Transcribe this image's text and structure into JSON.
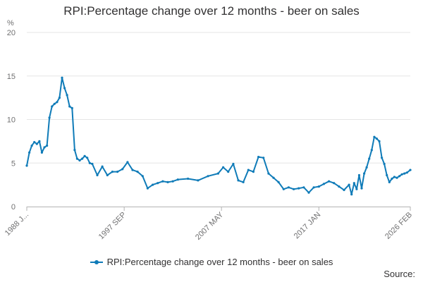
{
  "chart_data": {
    "type": "line",
    "title": "RPI:Percentage change over 12 months - beer on sales",
    "ylabel": "%",
    "xlabel": "",
    "ylim": [
      0,
      20
    ],
    "y_ticks": [
      0,
      5,
      10,
      15,
      20
    ],
    "x_tick_labels": [
      "1988 J...",
      "1997 SEP",
      "2007 MAY",
      "2017 JAN",
      "2026 FEB"
    ],
    "x_tick_years": [
      1988.0,
      1997.67,
      2007.33,
      2017.0,
      2026.08
    ],
    "grid": true,
    "legend_position": "bottom",
    "series": [
      {
        "name": "RPI:Percentage change over 12 months - beer on sales",
        "color": "#0f7bb8",
        "x": [
          1988.0,
          1988.25,
          1988.5,
          1988.75,
          1989.0,
          1989.25,
          1989.5,
          1989.75,
          1990.0,
          1990.25,
          1990.5,
          1990.75,
          1991.0,
          1991.25,
          1991.5,
          1991.75,
          1992.0,
          1992.25,
          1992.5,
          1992.75,
          1993.0,
          1993.25,
          1993.5,
          1993.75,
          1994.0,
          1994.25,
          1994.5,
          1995.0,
          1995.5,
          1996.0,
          1996.5,
          1997.0,
          1997.5,
          1998.0,
          1998.5,
          1999.0,
          1999.5,
          2000.0,
          2000.5,
          2001.0,
          2001.5,
          2002.0,
          2002.5,
          2003.0,
          2004.0,
          2005.0,
          2006.0,
          2007.0,
          2007.5,
          2008.0,
          2008.5,
          2009.0,
          2009.5,
          2010.0,
          2010.5,
          2011.0,
          2011.5,
          2012.0,
          2012.5,
          2013.0,
          2013.5,
          2014.0,
          2014.5,
          2015.0,
          2015.5,
          2016.0,
          2016.5,
          2017.0,
          2017.5,
          2018.0,
          2018.5,
          2019.0,
          2019.5,
          2020.0,
          2020.25,
          2020.5,
          2020.75,
          2021.0,
          2021.25,
          2021.5,
          2021.75,
          2022.0,
          2022.25,
          2022.5,
          2022.75,
          2023.0,
          2023.25,
          2023.5,
          2023.75,
          2024.0,
          2024.25,
          2024.5,
          2024.75,
          2025.0,
          2025.25,
          2025.5,
          2025.75,
          2026.08
        ],
        "values": [
          4.7,
          6.2,
          7.0,
          7.4,
          7.2,
          7.5,
          6.2,
          6.8,
          7.0,
          10.2,
          11.5,
          11.8,
          12.0,
          12.5,
          14.8,
          13.6,
          12.8,
          11.5,
          11.3,
          6.5,
          5.5,
          5.3,
          5.5,
          5.8,
          5.6,
          5.0,
          4.9,
          3.6,
          4.6,
          3.6,
          4.0,
          4.0,
          4.3,
          5.1,
          4.2,
          4.0,
          3.5,
          2.1,
          2.5,
          2.7,
          2.9,
          2.8,
          2.9,
          3.1,
          3.2,
          3.0,
          3.5,
          3.8,
          4.5,
          4.0,
          4.9,
          3.0,
          2.8,
          4.2,
          4.0,
          5.7,
          5.6,
          3.8,
          3.3,
          2.8,
          2.0,
          2.2,
          2.0,
          2.1,
          2.2,
          1.6,
          2.2,
          2.3,
          2.6,
          2.9,
          2.7,
          2.3,
          1.9,
          2.5,
          1.4,
          2.7,
          2.0,
          3.6,
          2.1,
          3.8,
          4.5,
          5.5,
          6.5,
          8.0,
          7.8,
          7.5,
          5.6,
          4.9,
          3.6,
          2.8,
          3.2,
          3.4,
          3.3,
          3.5,
          3.7,
          3.8,
          3.9,
          4.2
        ]
      }
    ]
  },
  "legend": {
    "label": "RPI:Percentage change over 12 months - beer on sales"
  },
  "source_label": "Source:"
}
